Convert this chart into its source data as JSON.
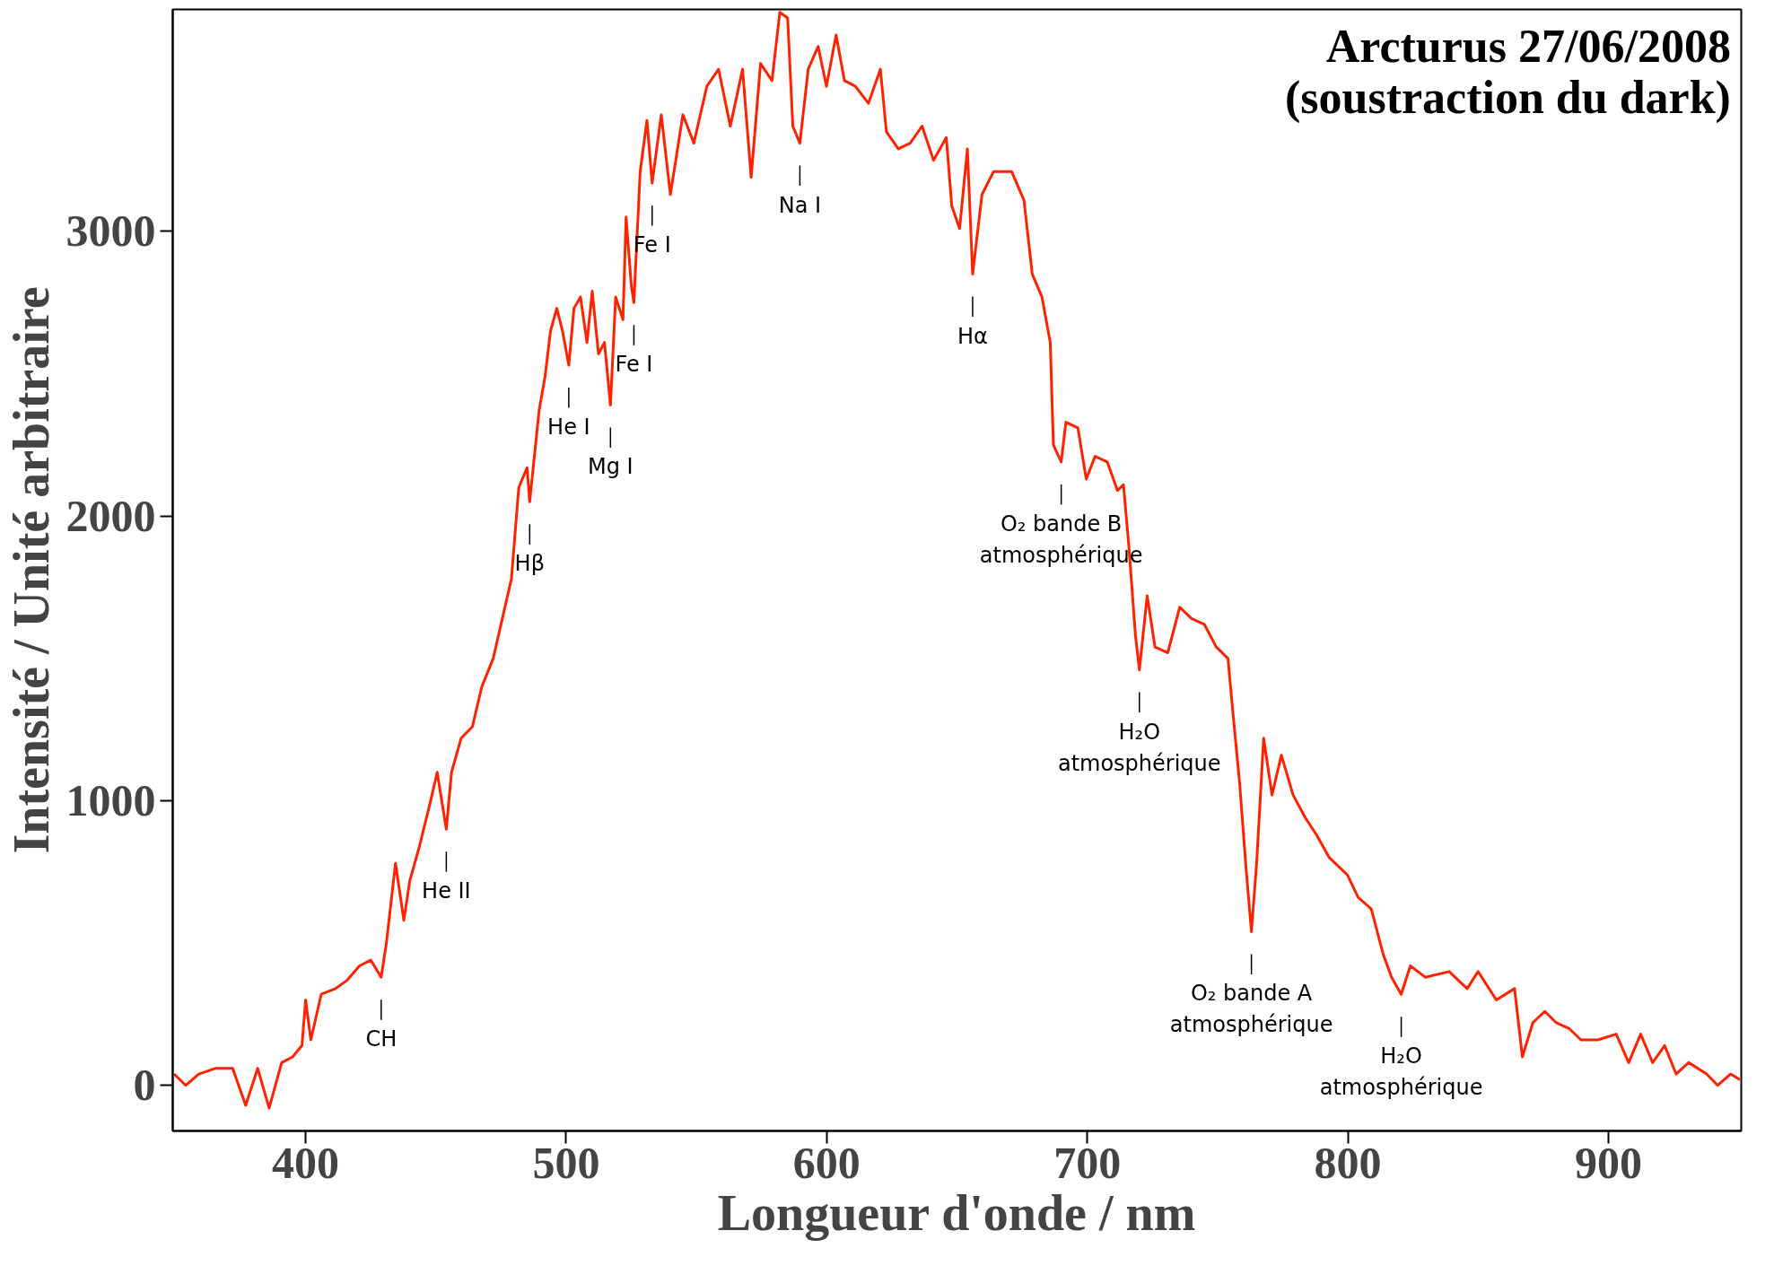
{
  "chart_data": {
    "type": "line",
    "title": "Arcturus 27/06/2008\n(soustraction du dark)",
    "xlabel": "Longueur d'onde / nm",
    "ylabel": "Intensité / Unité arbitraire",
    "xlim": [
      349,
      951
    ],
    "ylim": [
      -160,
      3780
    ],
    "xticks": [
      400,
      500,
      600,
      700,
      800,
      900
    ],
    "yticks": [
      0,
      1000,
      2000,
      3000
    ],
    "grid": false,
    "marker": "none",
    "line_style": "solid",
    "series": [
      {
        "color": "#ff2200",
        "x": [
          349.5,
          354,
          359,
          365.5,
          372,
          377,
          381.6,
          386,
          390.8,
          395,
          398.6,
          400,
          402,
          406,
          411.5,
          416,
          420.7,
          425,
          429,
          431,
          434.5,
          437.7,
          440,
          443.7,
          448,
          450.5,
          454,
          456,
          459.7,
          464,
          467.6,
          472,
          476,
          479,
          481.8,
          485,
          486,
          489.6,
          491.9,
          494,
          496.4,
          498.6,
          501,
          503,
          505.5,
          508,
          510,
          512.4,
          514.7,
          517,
          519,
          521.8,
          523,
          525,
          526,
          528.4,
          531,
          533,
          536.5,
          540,
          544.8,
          549,
          554,
          558.5,
          563,
          567.7,
          571,
          574.6,
          579,
          582,
          585,
          587,
          589.7,
          592.9,
          596.7,
          599.9,
          603.6,
          606.8,
          611,
          616,
          620.6,
          622.9,
          627.5,
          632,
          636.6,
          641,
          645.9,
          648,
          651,
          654,
          656,
          659.6,
          664,
          671,
          675.7,
          678.9,
          682.6,
          685.8,
          687,
          690,
          691.8,
          696.4,
          699.6,
          703,
          707.7,
          711.6,
          713.9,
          716,
          718.5,
          720,
          723,
          726,
          730.9,
          735.5,
          740,
          744.9,
          749.5,
          754,
          756,
          758.5,
          760.8,
          763,
          765,
          767.7,
          770.9,
          774.5,
          779,
          783.7,
          788,
          792.9,
          799.8,
          804,
          809,
          813.6,
          816.8,
          820.5,
          824,
          829.7,
          838.9,
          845.8,
          850,
          857,
          864,
          867,
          871,
          875.6,
          880,
          884.9,
          889.5,
          896,
          903,
          907.8,
          912.4,
          917,
          921.6,
          926,
          930.8,
          937.7,
          942,
          946.9,
          950.5
        ],
        "values": [
          40,
          0,
          40,
          60,
          60,
          -70,
          60,
          -80,
          80,
          100,
          140,
          300,
          160,
          320,
          340,
          370,
          420,
          440,
          380,
          500,
          780,
          580,
          720,
          840,
          1000,
          1100,
          900,
          1100,
          1220,
          1260,
          1400,
          1500,
          1660,
          1780,
          2100,
          2170,
          2050,
          2370,
          2490,
          2650,
          2730,
          2650,
          2530,
          2730,
          2770,
          2610,
          2790,
          2570,
          2610,
          2390,
          2770,
          2690,
          3050,
          2810,
          2750,
          3210,
          3390,
          3170,
          3410,
          3130,
          3410,
          3310,
          3510,
          3570,
          3370,
          3570,
          3190,
          3590,
          3530,
          3770,
          3750,
          3370,
          3310,
          3570,
          3650,
          3510,
          3690,
          3530,
          3510,
          3450,
          3570,
          3350,
          3290,
          3310,
          3370,
          3250,
          3330,
          3090,
          3010,
          3290,
          2850,
          3130,
          3210,
          3210,
          3110,
          2850,
          2770,
          2610,
          2250,
          2190,
          2330,
          2310,
          2130,
          2210,
          2190,
          2090,
          2110,
          1890,
          1580,
          1460,
          1720,
          1540,
          1520,
          1680,
          1640,
          1620,
          1540,
          1500,
          1300,
          1060,
          780,
          540,
          780,
          1220,
          1020,
          1160,
          1020,
          940,
          880,
          800,
          740,
          660,
          620,
          460,
          380,
          320,
          420,
          380,
          400,
          340,
          400,
          300,
          340,
          100,
          220,
          260,
          220,
          200,
          160,
          160,
          180,
          80,
          180,
          80,
          140,
          40,
          80,
          40,
          0,
          40,
          20
        ]
      }
    ],
    "annotations": [
      {
        "text": "CH",
        "x": 429,
        "y": 380
      },
      {
        "text": "He II",
        "x": 454,
        "y": 900
      },
      {
        "text": "Hβ",
        "x": 486,
        "y": 2050
      },
      {
        "text": "He I",
        "x": 501,
        "y": 2530
      },
      {
        "text": "Fe I",
        "x": 533,
        "y": 3170
      },
      {
        "text": "Fe I",
        "x": 526,
        "y": 2750
      },
      {
        "text": "Mg I",
        "x": 517,
        "y": 2390
      },
      {
        "text": "Na I",
        "x": 589.7,
        "y": 3310
      },
      {
        "text": "Hα",
        "x": 656,
        "y": 2850
      },
      {
        "text": "O₂ bande B\natmosphérique",
        "x": 690,
        "y": 2190
      },
      {
        "text": "H₂O\natmosphérique",
        "x": 720,
        "y": 1460
      },
      {
        "text": "O₂ bande A\natmosphérique",
        "x": 763,
        "y": 540
      },
      {
        "text": "H₂O\natmosphérique",
        "x": 820.5,
        "y": 320
      }
    ]
  }
}
